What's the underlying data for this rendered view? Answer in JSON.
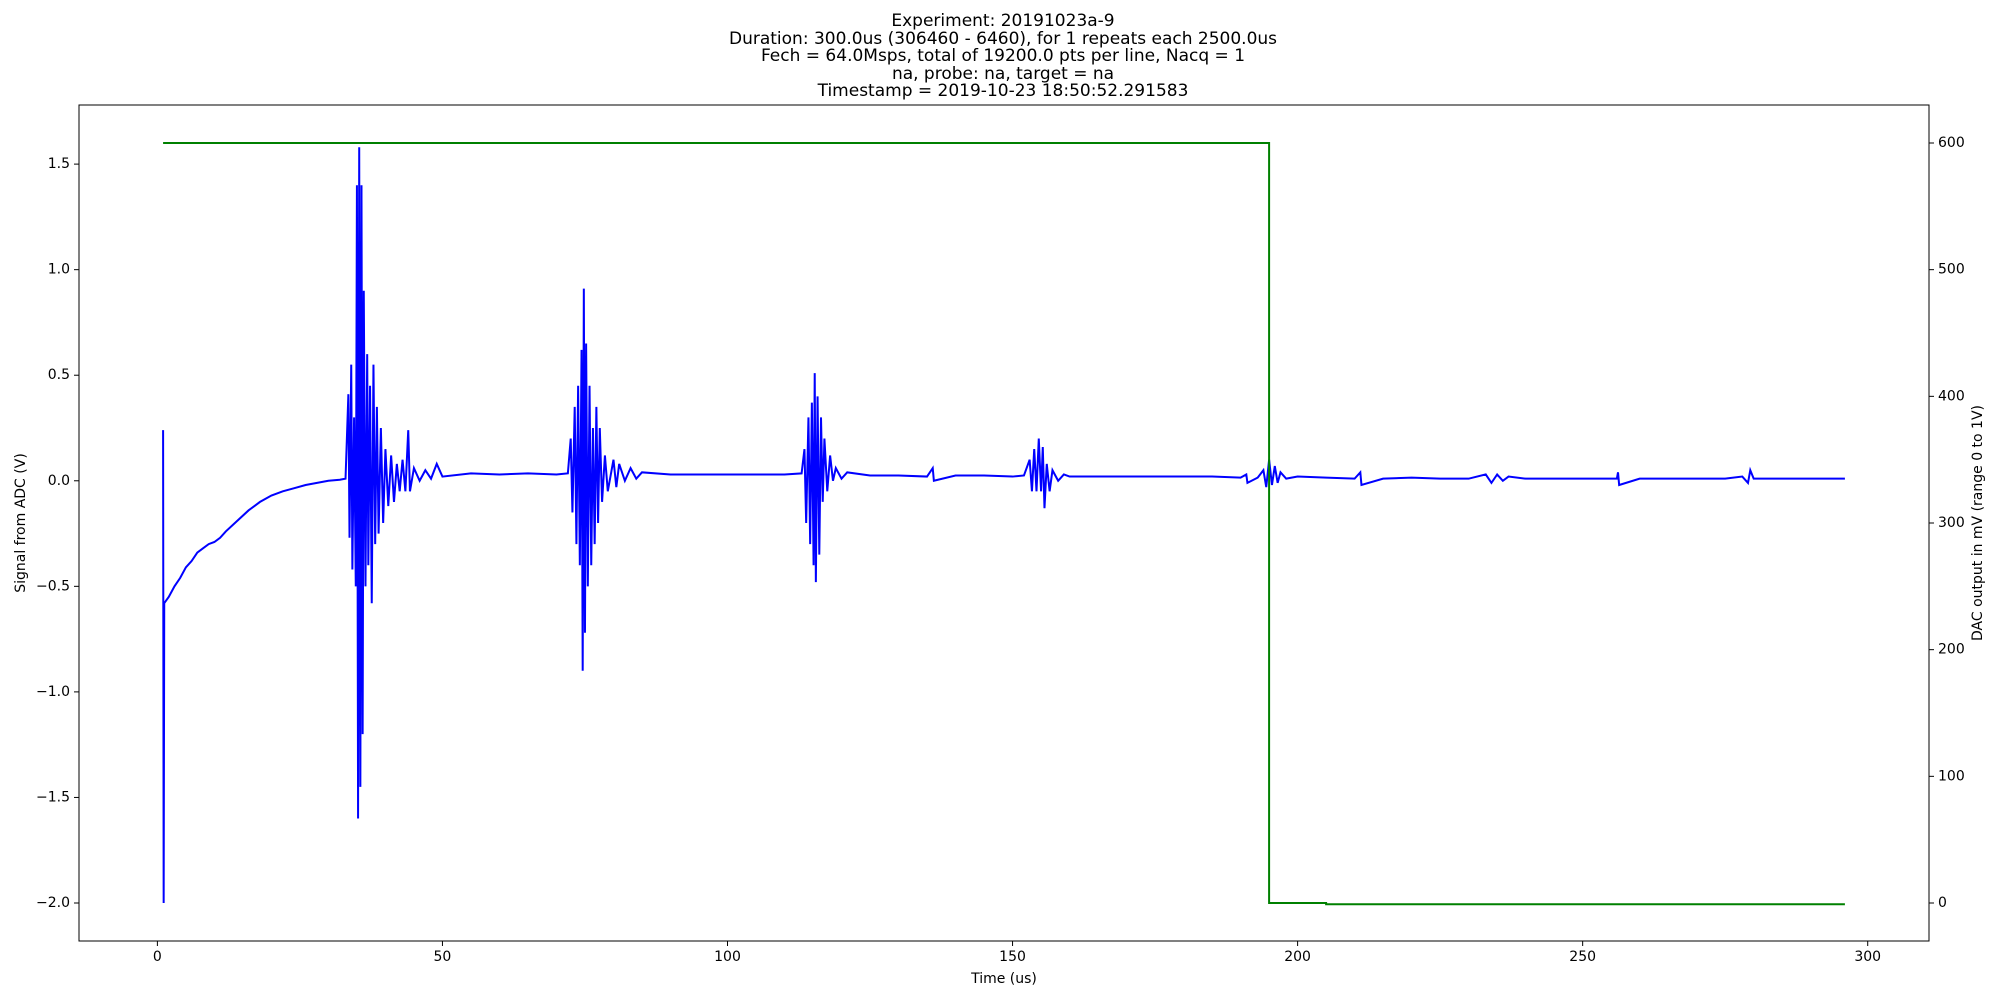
{
  "chart_data": {
    "type": "line",
    "title": [
      "Experiment: 20191023a-9",
      "Duration: 300.0us (306460 - 6460), for 1 repeats each 2500.0us",
      "Fech = 64.0Msps, total of 19200.0 pts per line, Nacq = 1",
      "na, probe: na, target = na",
      "Timestamp = 2019-10-23 18:50:52.291583"
    ],
    "xlabel": "Time (us)",
    "ylabel": "Signal from ADC (V)",
    "y2label": "DAC output in mV (range 0 to 1V)",
    "xlim": [
      -13.75,
      310.75
    ],
    "ylim": [
      -2.18,
      1.78
    ],
    "y2lim": [
      -30,
      630
    ],
    "xticks": [
      0,
      50,
      100,
      150,
      200,
      250,
      300
    ],
    "yticks": [
      {
        "value": -2,
        "label": "−2.0"
      },
      {
        "value": -1.5,
        "label": "−1.5"
      },
      {
        "value": -1,
        "label": "−1.0"
      },
      {
        "value": -0.5,
        "label": "−0.5"
      },
      {
        "value": 0,
        "label": "0.0"
      },
      0.5,
      {
        "value": 1,
        "label": "1.0"
      },
      1.5
    ],
    "y2ticks": [
      0,
      100,
      200,
      300,
      400,
      500,
      600
    ],
    "grid": false,
    "series": [
      {
        "color": "#0000ff",
        "x": [
          1.0,
          1.1,
          1.2,
          2,
          3,
          4,
          5,
          6,
          7,
          8,
          9,
          10,
          11,
          12,
          14,
          16,
          18,
          20,
          22,
          24,
          26,
          28,
          30,
          32,
          33,
          33.5,
          33.7,
          34,
          34.2,
          34.5,
          34.8,
          35.0,
          35.2,
          35.4,
          35.6,
          35.8,
          36.0,
          36.2,
          36.5,
          36.8,
          37,
          37.3,
          37.6,
          37.9,
          38.2,
          38.5,
          38.8,
          39.2,
          39.6,
          40,
          40.5,
          41,
          41.5,
          42,
          42.5,
          43,
          43.5,
          44,
          44.3,
          45,
          46,
          47,
          48,
          49,
          50,
          55,
          60,
          65,
          70,
          72,
          72.5,
          72.8,
          73.2,
          73.5,
          73.8,
          74.1,
          74.4,
          74.6,
          74.8,
          75.0,
          75.2,
          75.5,
          75.8,
          76.1,
          76.4,
          76.7,
          77,
          77.3,
          77.6,
          78,
          78.5,
          79,
          80,
          80.5,
          81,
          82,
          83,
          84,
          85,
          90,
          95,
          100,
          105,
          110,
          113,
          113.5,
          113.8,
          114.2,
          114.5,
          114.8,
          115.1,
          115.3,
          115.5,
          115.8,
          116.1,
          116.4,
          116.7,
          117,
          117.5,
          118,
          118.5,
          119,
          120,
          121,
          125,
          130,
          135,
          136,
          136.2,
          140,
          145,
          150,
          152,
          153,
          153.4,
          153.8,
          154.2,
          154.6,
          155,
          155.3,
          155.6,
          156,
          156.5,
          157,
          158,
          159,
          160,
          165,
          170,
          175,
          180,
          185,
          190,
          191,
          191.2,
          193,
          194,
          194.5,
          195,
          195.5,
          196,
          196.5,
          197,
          198,
          200,
          205,
          210,
          211,
          211.2,
          215,
          220,
          225,
          230,
          233,
          234,
          235,
          236,
          237,
          240,
          245,
          250,
          256,
          256.2,
          256.4,
          260,
          265,
          270,
          275,
          278,
          279,
          279.4,
          280,
          285,
          290,
          296
        ],
        "values": [
          0.24,
          -2.0,
          -0.58,
          -0.55,
          -0.5,
          -0.46,
          -0.41,
          -0.38,
          -0.34,
          -0.32,
          -0.3,
          -0.29,
          -0.27,
          -0.24,
          -0.19,
          -0.14,
          -0.1,
          -0.07,
          -0.05,
          -0.035,
          -0.02,
          -0.01,
          0.0,
          0.005,
          0.01,
          0.41,
          -0.27,
          0.55,
          -0.42,
          0.3,
          -0.5,
          1.4,
          -1.6,
          1.58,
          -1.45,
          1.4,
          -1.2,
          0.9,
          -0.5,
          0.6,
          -0.4,
          0.45,
          -0.58,
          0.55,
          -0.3,
          0.35,
          -0.25,
          0.25,
          -0.2,
          0.15,
          -0.12,
          0.12,
          -0.1,
          0.08,
          -0.05,
          0.1,
          -0.05,
          0.24,
          -0.05,
          0.06,
          0.0,
          0.05,
          0.01,
          0.08,
          0.02,
          0.035,
          0.03,
          0.035,
          0.03,
          0.035,
          0.2,
          -0.15,
          0.35,
          -0.3,
          0.45,
          -0.4,
          0.62,
          -0.9,
          0.91,
          -0.72,
          0.65,
          -0.5,
          0.45,
          -0.4,
          0.25,
          -0.3,
          0.35,
          -0.2,
          0.25,
          -0.1,
          0.12,
          -0.05,
          0.1,
          -0.03,
          0.08,
          0.0,
          0.06,
          0.01,
          0.04,
          0.03,
          0.03,
          0.03,
          0.03,
          0.03,
          0.035,
          0.15,
          -0.2,
          0.3,
          -0.3,
          0.37,
          -0.4,
          0.51,
          -0.48,
          0.4,
          -0.35,
          0.3,
          -0.1,
          0.2,
          -0.05,
          0.12,
          0.0,
          0.06,
          0.01,
          0.04,
          0.025,
          0.025,
          0.02,
          0.06,
          0.0,
          0.025,
          0.025,
          0.02,
          0.025,
          0.1,
          -0.05,
          0.15,
          -0.05,
          0.2,
          -0.05,
          0.16,
          -0.13,
          0.08,
          -0.05,
          0.05,
          0.0,
          0.03,
          0.02,
          0.02,
          0.02,
          0.02,
          0.02,
          0.02,
          0.015,
          0.03,
          -0.01,
          0.015,
          0.05,
          -0.03,
          0.1,
          -0.02,
          0.07,
          -0.01,
          0.04,
          0.01,
          0.02,
          0.015,
          0.01,
          0.04,
          -0.02,
          0.01,
          0.015,
          0.01,
          0.01,
          0.03,
          -0.01,
          0.03,
          0.0,
          0.02,
          0.01,
          0.01,
          0.01,
          0.01,
          0.04,
          -0.02,
          0.01,
          0.01,
          0.01,
          0.01,
          0.02,
          -0.01,
          0.05,
          0.01,
          0.01,
          0.01,
          0.01
        ]
      },
      {
        "color": "#008000",
        "axis": "y2",
        "x": [
          1,
          195,
          195,
          205,
          205,
          296
        ],
        "values": [
          600,
          600,
          0,
          0,
          -1,
          -1
        ]
      }
    ]
  }
}
